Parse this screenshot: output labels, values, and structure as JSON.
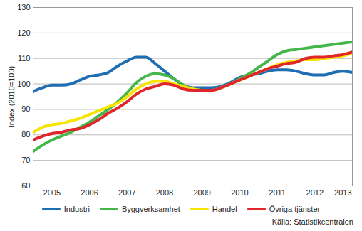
{
  "chart_data": {
    "type": "line",
    "y_label": "Index (2010=100)",
    "caption": "Källa: Statistikcentralen",
    "x": [
      2005,
      2005.25,
      2005.5,
      2005.75,
      2006,
      2006.25,
      2006.5,
      2006.75,
      2007,
      2007.25,
      2007.5,
      2007.75,
      2008,
      2008.25,
      2008.5,
      2008.75,
      2009,
      2009.25,
      2009.5,
      2009.75,
      2010,
      2010.25,
      2010.5,
      2010.75,
      2011,
      2011.25,
      2011.5,
      2011.75,
      2012,
      2012.25,
      2012.5,
      2012.75,
      2013,
      2013.25,
      2013.5
    ],
    "series": [
      {
        "name": "Industri",
        "color": "#1f6db3",
        "values": [
          97,
          98.5,
          99.5,
          99.5,
          100,
          101.5,
          103,
          103.5,
          104.5,
          107,
          109,
          110.5,
          110.5,
          108,
          105,
          102,
          99.5,
          98.5,
          98.5,
          98.5,
          99,
          100.5,
          102.5,
          103.5,
          104,
          105,
          105.5,
          105.5,
          105,
          104,
          103.5,
          103.5,
          104.5,
          105,
          104.5
        ]
      },
      {
        "name": "Byggverksamhet",
        "color": "#45b649",
        "values": [
          73.5,
          76,
          78,
          79.5,
          81,
          83,
          85,
          87.5,
          90,
          93,
          96.5,
          100.5,
          103,
          104,
          103.5,
          102,
          99.5,
          98,
          97.5,
          97.5,
          98.5,
          100,
          102,
          104,
          106.5,
          109,
          111.5,
          113,
          113.5,
          114,
          114.5,
          115,
          115.5,
          116,
          116.5
        ]
      },
      {
        "name": "Handel",
        "color": "#f7e400",
        "values": [
          81,
          83,
          84,
          84.5,
          85.5,
          86.5,
          88,
          89.5,
          91,
          92.5,
          95,
          98,
          100,
          101,
          101,
          100,
          99,
          98,
          97.5,
          97.5,
          98.5,
          100,
          101.5,
          103,
          104.5,
          106,
          107.5,
          108.5,
          109,
          109.5,
          109.5,
          110,
          110.5,
          111,
          112
        ]
      },
      {
        "name": "Övriga tjänster",
        "color": "#e0262b",
        "values": [
          78,
          79.5,
          80.5,
          81,
          82,
          82.5,
          84,
          86,
          88.5,
          90.5,
          93,
          96,
          98,
          99,
          100,
          99.5,
          98,
          97.5,
          97.5,
          97.5,
          98.5,
          100,
          101.5,
          103,
          104.5,
          106,
          107,
          108,
          108.5,
          110,
          110.5,
          110.5,
          111,
          111.5,
          112.5
        ]
      }
    ],
    "xlim": [
      2005,
      2013.5
    ],
    "xticks": [
      {
        "value": 2005.5,
        "label": "2005"
      },
      {
        "value": 2006.5,
        "label": "2006"
      },
      {
        "value": 2007.5,
        "label": "2007"
      },
      {
        "value": 2008.5,
        "label": "2008"
      },
      {
        "value": 2009.5,
        "label": "2009"
      },
      {
        "value": 2010.5,
        "label": "2010"
      },
      {
        "value": 2011.5,
        "label": "2011"
      },
      {
        "value": 2012.5,
        "label": "2012"
      },
      {
        "value": 2013.25,
        "label": "2013"
      }
    ],
    "ylim": [
      60,
      130
    ],
    "yticks": [
      60,
      70,
      80,
      90,
      100,
      110,
      120,
      130
    ],
    "grid": true,
    "legend": "bottom"
  }
}
